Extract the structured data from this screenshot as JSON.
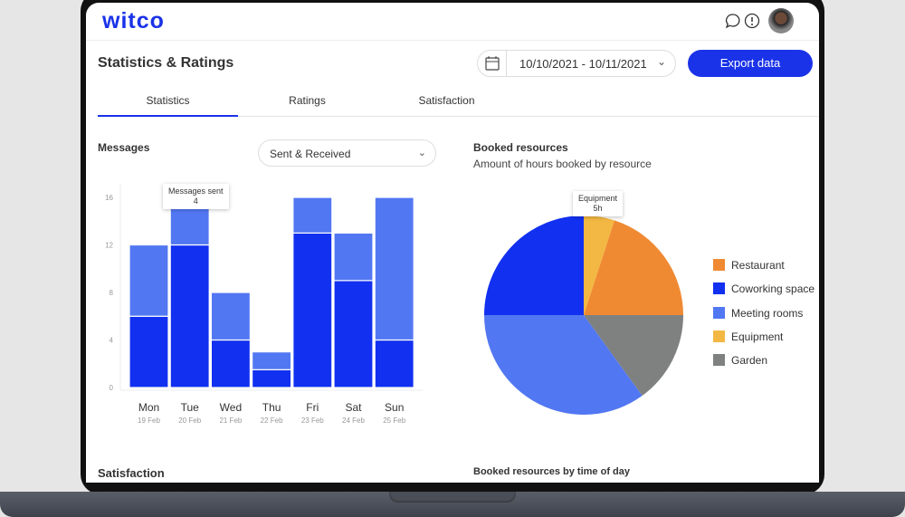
{
  "app": {
    "logo": "witco"
  },
  "header": {
    "title": "Statistics & Ratings",
    "date_range": "10/10/2021 - 10/11/2021",
    "export_label": "Export data",
    "icons": [
      "chat-icon",
      "info-icon",
      "avatar"
    ]
  },
  "tabs": [
    {
      "label": "Statistics",
      "active": true
    },
    {
      "label": "Ratings"
    },
    {
      "label": "Satisfaction"
    }
  ],
  "messages": {
    "title": "Messages",
    "filter": "Sent & Received",
    "tooltip": {
      "label": "Messages sent",
      "value": "4"
    }
  },
  "booked": {
    "title": "Booked resources",
    "subtitle": "Amount of hours booked by resource",
    "tooltip": {
      "label": "Equipment",
      "value": "5h"
    }
  },
  "bottom": {
    "satisfaction": "Satisfaction",
    "by_time": "Booked resources by time of day"
  },
  "colors": {
    "accent": "#1a33e8",
    "dark_bar": "#1230f0",
    "light_bar": "#5277f2"
  },
  "chart_data": [
    {
      "type": "bar",
      "stacked": true,
      "categories": [
        "Mon",
        "Tue",
        "Wed",
        "Thu",
        "Fri",
        "Sat",
        "Sun"
      ],
      "sublabels": [
        "19 Feb",
        "20 Feb",
        "21 Feb",
        "22 Feb",
        "23 Feb",
        "24 Feb",
        "25 Feb"
      ],
      "yticks": [
        0,
        4,
        8,
        12,
        16
      ],
      "ylim": [
        0,
        16
      ],
      "series": [
        {
          "values": [
            6,
            12,
            4,
            1.5,
            13,
            9,
            4
          ],
          "color": "#1230f0"
        },
        {
          "name": "Messages sent",
          "values": [
            6,
            4,
            4,
            1.5,
            3,
            4,
            12
          ],
          "color": "#5277f2"
        }
      ]
    },
    {
      "type": "pie",
      "slices": [
        {
          "label": "Restaurant",
          "value": 20,
          "color": "#ef8a33"
        },
        {
          "label": "Coworking space",
          "value": 25,
          "color": "#1230f0"
        },
        {
          "label": "Meeting rooms",
          "value": 35,
          "color": "#5277f2"
        },
        {
          "label": "Equipment",
          "value": 5,
          "color": "#f3b843"
        },
        {
          "label": "Garden",
          "value": 15,
          "color": "#7f8180"
        }
      ],
      "legend": "right",
      "unit": "h"
    }
  ]
}
